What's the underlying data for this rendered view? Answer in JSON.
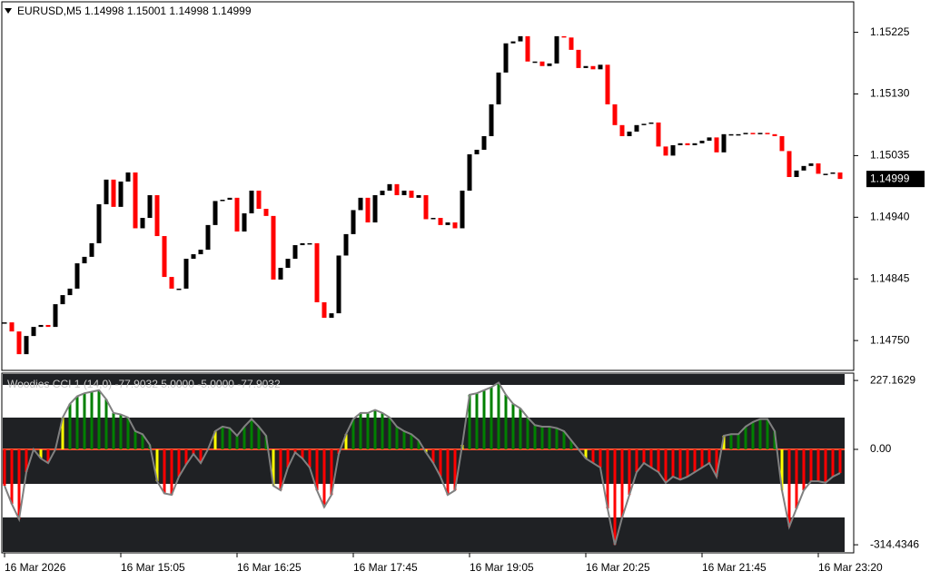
{
  "chart_data": [
    {
      "type": "candlestick",
      "title": "EURUSD,M5 1.14998 1.15001 1.14998 1.14999",
      "up_color": "#000000",
      "down_color": "#ff0000",
      "ylim": [
        1.14704,
        1.15272
      ],
      "yticks": [
        1.15225,
        {
          "value": 1.1513,
          "label": "1.15130"
        },
        1.15035,
        {
          "value": 1.1494,
          "label": "1.14940"
        },
        1.14845,
        {
          "value": 1.1475,
          "label": "1.14750"
        }
      ],
      "categories": [
        "16 Mar 2026",
        null,
        null,
        null,
        null,
        null,
        null,
        null,
        null,
        null,
        null,
        null,
        null,
        null,
        null,
        null,
        "16 Mar 15:05",
        null,
        null,
        null,
        null,
        null,
        null,
        null,
        null,
        null,
        null,
        null,
        null,
        null,
        null,
        null,
        "16 Mar 16:25",
        null,
        null,
        null,
        null,
        null,
        null,
        null,
        null,
        null,
        null,
        null,
        null,
        null,
        null,
        null,
        "16 Mar 17:45",
        null,
        null,
        null,
        null,
        null,
        null,
        null,
        null,
        null,
        null,
        null,
        null,
        null,
        null,
        null,
        "16 Mar 19:05",
        null,
        null,
        null,
        null,
        null,
        null,
        null,
        null,
        null,
        null,
        null,
        null,
        null,
        null,
        null,
        "16 Mar 20:25",
        null,
        null,
        null,
        null,
        null,
        null,
        null,
        null,
        null,
        null,
        null,
        null,
        null,
        null,
        null,
        "16 Mar 21:45",
        null,
        null,
        null,
        null,
        null,
        null,
        null,
        null,
        null,
        null,
        null,
        null,
        null,
        null,
        null,
        "16 Mar 23:20",
        null,
        null,
        null
      ],
      "close": [
        1.14778,
        1.14764,
        1.14729,
        1.14757,
        1.14771,
        1.14774,
        1.14771,
        1.14806,
        1.1482,
        1.1483,
        1.14869,
        1.14879,
        1.149,
        1.1496,
        1.14998,
        1.14956,
        1.14995,
        1.15009,
        1.14923,
        1.14939,
        1.14974,
        1.14911,
        1.14848,
        1.1483,
        1.1483,
        1.14876,
        1.14883,
        1.1489,
        1.14928,
        1.14965,
        1.14967,
        1.1497,
        1.14918,
        1.14946,
        1.14981,
        1.14953,
        1.14942,
        1.14844,
        1.14862,
        1.14876,
        1.14897,
        1.149,
        1.149,
        1.14809,
        1.14785,
        1.14792,
        1.14881,
        1.14914,
        1.14951,
        1.1497,
        1.14932,
        1.14974,
        1.14981,
        1.14991,
        1.14974,
        1.14981,
        1.1497,
        1.14974,
        1.14937,
        1.14939,
        1.14928,
        1.14932,
        1.14923,
        1.14981,
        1.15037,
        1.15044,
        1.15065,
        1.15114,
        1.15163,
        1.15208,
        1.15211,
        1.15219,
        1.1518,
        1.1518,
        1.15173,
        1.15177,
        1.15219,
        1.15217,
        1.15198,
        1.1517,
        1.15173,
        1.15168,
        1.15175,
        1.15114,
        1.15082,
        1.15065,
        1.15072,
        1.15082,
        1.15084,
        1.15086,
        1.15049,
        1.15035,
        1.15051,
        1.15054,
        1.15051,
        1.15054,
        1.15058,
        1.15063,
        1.1504,
        1.15068,
        1.15068,
        1.15068,
        1.1507,
        1.15068,
        1.1507,
        1.15068,
        1.15065,
        1.15042,
        1.15002,
        1.15012,
        1.15019,
        1.15023,
        1.15007,
        1.15007,
        1.15009,
        1.14999
      ]
    },
    {
      "type": "cci",
      "title": "Woodies CCI 1 (14,0) -77.9032 5.0000 -5.0000 -77.9032",
      "up_color": "#008000",
      "down_color": "#ff0000",
      "cross_color": "#ffff00",
      "line_color": "#808080",
      "zero_line_color": "#ff5030",
      "ylim": [
        -338.1,
        248.4
      ],
      "yticks": [
        227.1629,
        {
          "value": 0,
          "label": "0.00"
        },
        -314.4346
      ],
      "values": [
        -120,
        -180,
        -230,
        -75,
        0,
        -30,
        -45,
        0,
        105,
        150,
        175,
        185,
        190,
        195,
        165,
        120,
        115,
        105,
        60,
        50,
        15,
        -105,
        -145,
        -150,
        -90,
        -50,
        -15,
        -45,
        0,
        60,
        75,
        70,
        45,
        75,
        100,
        75,
        45,
        -120,
        -135,
        -60,
        -10,
        -30,
        -60,
        -135,
        -190,
        -150,
        -15,
        50,
        100,
        120,
        120,
        130,
        120,
        105,
        75,
        60,
        50,
        30,
        -10,
        -45,
        -90,
        -150,
        -135,
        15,
        180,
        185,
        195,
        205,
        220,
        180,
        150,
        135,
        105,
        80,
        75,
        75,
        70,
        60,
        30,
        0,
        -30,
        -45,
        -60,
        -195,
        -315,
        -225,
        -150,
        -75,
        -45,
        -60,
        -75,
        -110,
        -90,
        -100,
        -90,
        -75,
        -60,
        -45,
        -90,
        45,
        50,
        50,
        75,
        90,
        100,
        100,
        60,
        -135,
        -255,
        -195,
        -135,
        -105,
        -105,
        -110,
        -90,
        -77.9032
      ]
    }
  ]
}
